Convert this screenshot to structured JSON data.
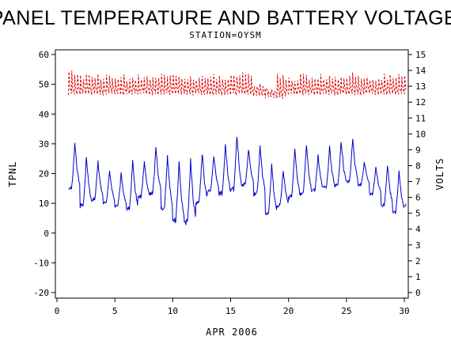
{
  "chart_data": {
    "type": "line",
    "title": "PANEL TEMPERATURE AND BATTERY VOLTAGE",
    "subtitle": "STATION=OYSM",
    "xlabel": "APR 2006",
    "ylabel_left": "TPNL",
    "ylabel_right": "VOLTS",
    "xlim": [
      0,
      30
    ],
    "ylim_left": [
      -20,
      60
    ],
    "ylim_right": [
      0,
      15
    ],
    "x_ticks": [
      0,
      5,
      10,
      15,
      20,
      25,
      30
    ],
    "y_ticks_left": [
      -20,
      -10,
      0,
      10,
      20,
      30,
      40,
      50,
      60
    ],
    "y_ticks_right": [
      0,
      1,
      2,
      3,
      4,
      5,
      6,
      7,
      8,
      9,
      10,
      11,
      12,
      13,
      14,
      15
    ],
    "grid": false,
    "series": [
      {
        "name": "TPNL",
        "axis": "left",
        "color": "#0000cc",
        "style": "solid",
        "daily_min": [
          15,
          9,
          11,
          10,
          9,
          8,
          12,
          13,
          8,
          4,
          3,
          10,
          14,
          13,
          14,
          16,
          13,
          6,
          9,
          12,
          13,
          14,
          15,
          16,
          17,
          16,
          13,
          9,
          7,
          9
        ],
        "daily_max": [
          30,
          26,
          24,
          21,
          20,
          24,
          24,
          29,
          26,
          24,
          25,
          27,
          26,
          30,
          33,
          28,
          29,
          23,
          21,
          29,
          30,
          26,
          29,
          31,
          32,
          24,
          22,
          23,
          21,
          20
        ]
      },
      {
        "name": "VOLTS",
        "axis": "right",
        "color": "#dd0000",
        "style": "dashed",
        "daily_min": [
          12.5,
          12.5,
          12.5,
          12.5,
          12.5,
          12.5,
          12.5,
          12.5,
          12.5,
          12.5,
          12.5,
          12.5,
          12.5,
          12.5,
          12.5,
          12.5,
          12.4,
          12.3,
          12.3,
          12.5,
          12.5,
          12.5,
          12.5,
          12.5,
          12.5,
          12.5,
          12.5,
          12.5,
          12.5,
          12.5
        ],
        "daily_max": [
          14,
          13.8,
          13.8,
          13.8,
          13.8,
          13.7,
          13.8,
          13.8,
          13.8,
          13.8,
          13.8,
          13.7,
          13.8,
          13.8,
          13.8,
          13.9,
          13.2,
          13.0,
          13.8,
          13.7,
          13.8,
          13.8,
          13.8,
          13.8,
          13.9,
          13.7,
          13.6,
          13.8,
          13.9,
          13.8
        ]
      }
    ]
  }
}
